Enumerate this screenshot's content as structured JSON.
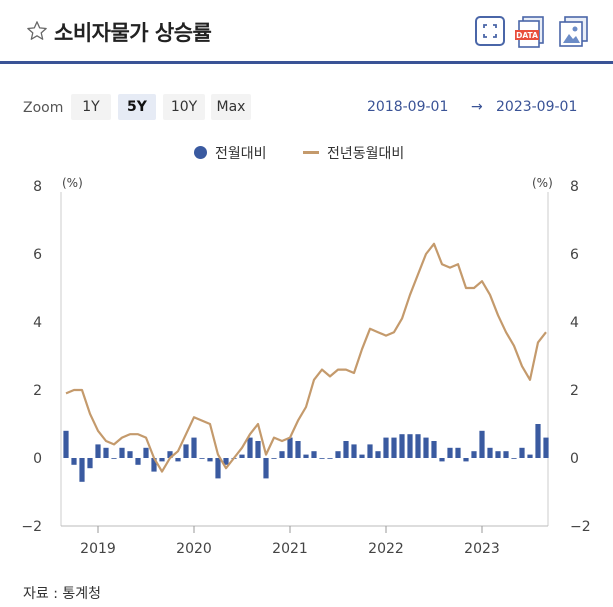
{
  "header": {
    "title": "소비자물가 상승률",
    "icons": [
      "star-icon",
      "expand-icon",
      "data-download-icon",
      "image-download-icon"
    ],
    "data_badge": "DATA"
  },
  "zoom": {
    "label": "Zoom",
    "options": [
      "1Y",
      "5Y",
      "10Y",
      "Max"
    ],
    "selected": "5Y"
  },
  "range": {
    "start": "2018-09-01",
    "arrow": "→",
    "end": "2023-09-01"
  },
  "colors": {
    "bar": "#3a5aa0",
    "line": "#c49a6c",
    "accent": "#3a5396"
  },
  "source": {
    "text": "자료 : 통계청"
  },
  "chart_data": {
    "type": "bar+line",
    "legend": [
      "전월대비",
      "전년동월대비"
    ],
    "legend_position": "top",
    "y_unit_left": "(%)",
    "y_unit_right": "(%)",
    "ylim": [
      -2,
      8
    ],
    "y_ticks": [
      -2,
      0,
      2,
      4,
      6,
      8
    ],
    "y_tick_labels": [
      "−2",
      "0",
      "2",
      "4",
      "6",
      "8"
    ],
    "x_labels": [
      "2019",
      "2020",
      "2021",
      "2022",
      "2023"
    ],
    "x": [
      "2018-09",
      "2018-10",
      "2018-11",
      "2018-12",
      "2019-01",
      "2019-02",
      "2019-03",
      "2019-04",
      "2019-05",
      "2019-06",
      "2019-07",
      "2019-08",
      "2019-09",
      "2019-10",
      "2019-11",
      "2019-12",
      "2020-01",
      "2020-02",
      "2020-03",
      "2020-04",
      "2020-05",
      "2020-06",
      "2020-07",
      "2020-08",
      "2020-09",
      "2020-10",
      "2020-11",
      "2020-12",
      "2021-01",
      "2021-02",
      "2021-03",
      "2021-04",
      "2021-05",
      "2021-06",
      "2021-07",
      "2021-08",
      "2021-09",
      "2021-10",
      "2021-11",
      "2021-12",
      "2022-01",
      "2022-02",
      "2022-03",
      "2022-04",
      "2022-05",
      "2022-06",
      "2022-07",
      "2022-08",
      "2022-09",
      "2022-10",
      "2022-11",
      "2022-12",
      "2023-01",
      "2023-02",
      "2023-03",
      "2023-04",
      "2023-05",
      "2023-06",
      "2023-07",
      "2023-08",
      "2023-09"
    ],
    "series": [
      {
        "name": "전월대비",
        "type": "bar",
        "values": [
          0.8,
          -0.2,
          -0.7,
          -0.3,
          0.4,
          0.3,
          0.0,
          0.3,
          0.2,
          -0.2,
          0.3,
          -0.4,
          -0.1,
          0.2,
          -0.1,
          0.4,
          0.6,
          0.0,
          -0.1,
          -0.6,
          -0.2,
          0.0,
          0.1,
          0.6,
          0.5,
          -0.6,
          0.0,
          0.2,
          0.6,
          0.5,
          0.1,
          0.2,
          0.0,
          0.0,
          0.2,
          0.5,
          0.4,
          0.1,
          0.4,
          0.2,
          0.6,
          0.6,
          0.7,
          0.7,
          0.7,
          0.6,
          0.5,
          -0.1,
          0.3,
          0.3,
          -0.1,
          0.2,
          0.8,
          0.3,
          0.2,
          0.2,
          0.0,
          0.3,
          0.1,
          1.0,
          0.6
        ]
      },
      {
        "name": "전년동월대비",
        "type": "line",
        "values": [
          1.9,
          2.0,
          2.0,
          1.3,
          0.8,
          0.5,
          0.4,
          0.6,
          0.7,
          0.7,
          0.6,
          0.0,
          -0.4,
          0.0,
          0.2,
          0.7,
          1.2,
          1.1,
          1.0,
          0.1,
          -0.3,
          0.0,
          0.3,
          0.7,
          1.0,
          0.1,
          0.6,
          0.5,
          0.6,
          1.1,
          1.5,
          2.3,
          2.6,
          2.4,
          2.6,
          2.6,
          2.5,
          3.2,
          3.8,
          3.7,
          3.6,
          3.7,
          4.1,
          4.8,
          5.4,
          6.0,
          6.3,
          5.7,
          5.6,
          5.7,
          5.0,
          5.0,
          5.2,
          4.8,
          4.2,
          3.7,
          3.3,
          2.7,
          2.3,
          3.4,
          3.7
        ]
      }
    ],
    "grid": false
  }
}
